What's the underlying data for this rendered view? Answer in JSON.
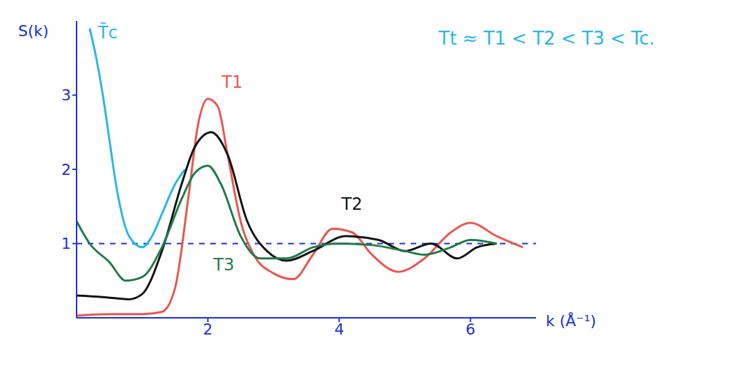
{
  "chart_data": {
    "type": "line",
    "xlabel": "k (Å⁻¹)",
    "ylabel": "S(k)",
    "annotation": "Tt ≈ T1 < T2 < T3 < Tc.",
    "xlim": [
      0,
      7
    ],
    "ylim": [
      0,
      4
    ],
    "xticks": [
      2,
      4,
      6
    ],
    "yticks": [
      1,
      2,
      3
    ],
    "reference_line": 1,
    "grid": false,
    "series": [
      {
        "name": "T̃c",
        "color": "#29b6e8",
        "line_style": "solid",
        "x": [
          0.2,
          0.3,
          0.4,
          0.5,
          0.6,
          0.8,
          1.0,
          1.15,
          1.3,
          1.5,
          1.65
        ],
        "values": [
          3.9,
          3.5,
          3.0,
          2.4,
          1.8,
          1.1,
          0.95,
          1.1,
          1.4,
          1.8,
          2.0
        ]
      },
      {
        "name": "T1",
        "color": "#e8554e",
        "line_style": "solid",
        "x": [
          0,
          0.5,
          1,
          1.3,
          1.5,
          1.7,
          1.85,
          2.0,
          2.15,
          2.3,
          2.5,
          2.7,
          3.0,
          3.3,
          3.6,
          3.9,
          4.2,
          4.5,
          4.9,
          5.3,
          5.7,
          6.0,
          6.4,
          6.8
        ],
        "values": [
          0.03,
          0.05,
          0.05,
          0.08,
          0.4,
          1.6,
          2.6,
          2.95,
          2.85,
          2.2,
          1.3,
          0.85,
          0.6,
          0.52,
          0.85,
          1.2,
          1.15,
          0.85,
          0.62,
          0.8,
          1.15,
          1.28,
          1.1,
          0.95
        ]
      },
      {
        "name": "T2",
        "color": "#111111",
        "line_style": "solid",
        "x": [
          0,
          0.4,
          0.8,
          1.0,
          1.3,
          1.6,
          1.8,
          2.05,
          2.3,
          2.6,
          2.9,
          3.2,
          3.6,
          4.1,
          4.6,
          5.0,
          5.4,
          5.8,
          6.1,
          6.4
        ],
        "values": [
          0.3,
          0.28,
          0.25,
          0.32,
          0.9,
          1.8,
          2.3,
          2.5,
          2.2,
          1.3,
          0.9,
          0.77,
          0.9,
          1.1,
          1.05,
          0.9,
          1.0,
          0.8,
          0.95,
          1.0
        ]
      },
      {
        "name": "T3",
        "color": "#1f7a4a",
        "line_style": "solid",
        "x": [
          0,
          0.2,
          0.5,
          0.75,
          1.0,
          1.3,
          1.6,
          1.8,
          2.0,
          2.2,
          2.5,
          2.8,
          3.2,
          3.6,
          4.0,
          4.5,
          5.0,
          5.3,
          5.7,
          6.0,
          6.4
        ],
        "values": [
          1.3,
          1.0,
          0.75,
          0.5,
          0.55,
          0.95,
          1.6,
          1.95,
          2.05,
          1.8,
          1.1,
          0.8,
          0.8,
          0.95,
          1.0,
          0.98,
          0.9,
          0.85,
          0.95,
          1.05,
          1.0
        ]
      }
    ]
  }
}
